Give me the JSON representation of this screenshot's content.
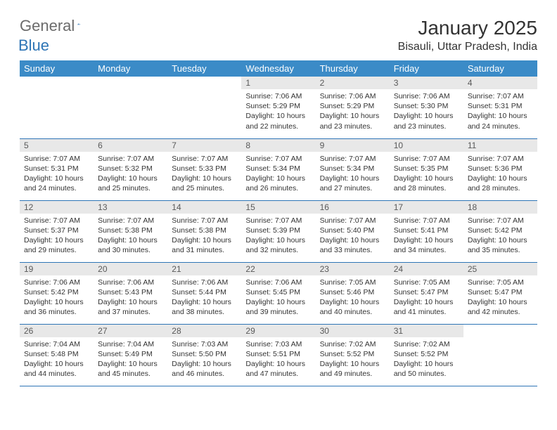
{
  "logo": {
    "text1": "General",
    "text2": "Blue"
  },
  "title": "January 2025",
  "location": "Bisauli, Uttar Pradesh, India",
  "colors": {
    "header_bg": "#3b8bc7",
    "header_text": "#ffffff",
    "daynum_bg": "#e8e8e8",
    "daynum_text": "#595959",
    "border": "#2e75b6",
    "logo_gray": "#6b6b6b",
    "logo_blue": "#2e75b6"
  },
  "weekdays": [
    "Sunday",
    "Monday",
    "Tuesday",
    "Wednesday",
    "Thursday",
    "Friday",
    "Saturday"
  ],
  "weeks": [
    [
      {
        "day": "",
        "lines": [
          "",
          "",
          "",
          ""
        ]
      },
      {
        "day": "",
        "lines": [
          "",
          "",
          "",
          ""
        ]
      },
      {
        "day": "",
        "lines": [
          "",
          "",
          "",
          ""
        ]
      },
      {
        "day": "1",
        "lines": [
          "Sunrise: 7:06 AM",
          "Sunset: 5:29 PM",
          "Daylight: 10 hours",
          "and 22 minutes."
        ]
      },
      {
        "day": "2",
        "lines": [
          "Sunrise: 7:06 AM",
          "Sunset: 5:29 PM",
          "Daylight: 10 hours",
          "and 23 minutes."
        ]
      },
      {
        "day": "3",
        "lines": [
          "Sunrise: 7:06 AM",
          "Sunset: 5:30 PM",
          "Daylight: 10 hours",
          "and 23 minutes."
        ]
      },
      {
        "day": "4",
        "lines": [
          "Sunrise: 7:07 AM",
          "Sunset: 5:31 PM",
          "Daylight: 10 hours",
          "and 24 minutes."
        ]
      }
    ],
    [
      {
        "day": "5",
        "lines": [
          "Sunrise: 7:07 AM",
          "Sunset: 5:31 PM",
          "Daylight: 10 hours",
          "and 24 minutes."
        ]
      },
      {
        "day": "6",
        "lines": [
          "Sunrise: 7:07 AM",
          "Sunset: 5:32 PM",
          "Daylight: 10 hours",
          "and 25 minutes."
        ]
      },
      {
        "day": "7",
        "lines": [
          "Sunrise: 7:07 AM",
          "Sunset: 5:33 PM",
          "Daylight: 10 hours",
          "and 25 minutes."
        ]
      },
      {
        "day": "8",
        "lines": [
          "Sunrise: 7:07 AM",
          "Sunset: 5:34 PM",
          "Daylight: 10 hours",
          "and 26 minutes."
        ]
      },
      {
        "day": "9",
        "lines": [
          "Sunrise: 7:07 AM",
          "Sunset: 5:34 PM",
          "Daylight: 10 hours",
          "and 27 minutes."
        ]
      },
      {
        "day": "10",
        "lines": [
          "Sunrise: 7:07 AM",
          "Sunset: 5:35 PM",
          "Daylight: 10 hours",
          "and 28 minutes."
        ]
      },
      {
        "day": "11",
        "lines": [
          "Sunrise: 7:07 AM",
          "Sunset: 5:36 PM",
          "Daylight: 10 hours",
          "and 28 minutes."
        ]
      }
    ],
    [
      {
        "day": "12",
        "lines": [
          "Sunrise: 7:07 AM",
          "Sunset: 5:37 PM",
          "Daylight: 10 hours",
          "and 29 minutes."
        ]
      },
      {
        "day": "13",
        "lines": [
          "Sunrise: 7:07 AM",
          "Sunset: 5:38 PM",
          "Daylight: 10 hours",
          "and 30 minutes."
        ]
      },
      {
        "day": "14",
        "lines": [
          "Sunrise: 7:07 AM",
          "Sunset: 5:38 PM",
          "Daylight: 10 hours",
          "and 31 minutes."
        ]
      },
      {
        "day": "15",
        "lines": [
          "Sunrise: 7:07 AM",
          "Sunset: 5:39 PM",
          "Daylight: 10 hours",
          "and 32 minutes."
        ]
      },
      {
        "day": "16",
        "lines": [
          "Sunrise: 7:07 AM",
          "Sunset: 5:40 PM",
          "Daylight: 10 hours",
          "and 33 minutes."
        ]
      },
      {
        "day": "17",
        "lines": [
          "Sunrise: 7:07 AM",
          "Sunset: 5:41 PM",
          "Daylight: 10 hours",
          "and 34 minutes."
        ]
      },
      {
        "day": "18",
        "lines": [
          "Sunrise: 7:07 AM",
          "Sunset: 5:42 PM",
          "Daylight: 10 hours",
          "and 35 minutes."
        ]
      }
    ],
    [
      {
        "day": "19",
        "lines": [
          "Sunrise: 7:06 AM",
          "Sunset: 5:42 PM",
          "Daylight: 10 hours",
          "and 36 minutes."
        ]
      },
      {
        "day": "20",
        "lines": [
          "Sunrise: 7:06 AM",
          "Sunset: 5:43 PM",
          "Daylight: 10 hours",
          "and 37 minutes."
        ]
      },
      {
        "day": "21",
        "lines": [
          "Sunrise: 7:06 AM",
          "Sunset: 5:44 PM",
          "Daylight: 10 hours",
          "and 38 minutes."
        ]
      },
      {
        "day": "22",
        "lines": [
          "Sunrise: 7:06 AM",
          "Sunset: 5:45 PM",
          "Daylight: 10 hours",
          "and 39 minutes."
        ]
      },
      {
        "day": "23",
        "lines": [
          "Sunrise: 7:05 AM",
          "Sunset: 5:46 PM",
          "Daylight: 10 hours",
          "and 40 minutes."
        ]
      },
      {
        "day": "24",
        "lines": [
          "Sunrise: 7:05 AM",
          "Sunset: 5:47 PM",
          "Daylight: 10 hours",
          "and 41 minutes."
        ]
      },
      {
        "day": "25",
        "lines": [
          "Sunrise: 7:05 AM",
          "Sunset: 5:47 PM",
          "Daylight: 10 hours",
          "and 42 minutes."
        ]
      }
    ],
    [
      {
        "day": "26",
        "lines": [
          "Sunrise: 7:04 AM",
          "Sunset: 5:48 PM",
          "Daylight: 10 hours",
          "and 44 minutes."
        ]
      },
      {
        "day": "27",
        "lines": [
          "Sunrise: 7:04 AM",
          "Sunset: 5:49 PM",
          "Daylight: 10 hours",
          "and 45 minutes."
        ]
      },
      {
        "day": "28",
        "lines": [
          "Sunrise: 7:03 AM",
          "Sunset: 5:50 PM",
          "Daylight: 10 hours",
          "and 46 minutes."
        ]
      },
      {
        "day": "29",
        "lines": [
          "Sunrise: 7:03 AM",
          "Sunset: 5:51 PM",
          "Daylight: 10 hours",
          "and 47 minutes."
        ]
      },
      {
        "day": "30",
        "lines": [
          "Sunrise: 7:02 AM",
          "Sunset: 5:52 PM",
          "Daylight: 10 hours",
          "and 49 minutes."
        ]
      },
      {
        "day": "31",
        "lines": [
          "Sunrise: 7:02 AM",
          "Sunset: 5:52 PM",
          "Daylight: 10 hours",
          "and 50 minutes."
        ]
      },
      {
        "day": "",
        "lines": [
          "",
          "",
          "",
          ""
        ]
      }
    ]
  ]
}
